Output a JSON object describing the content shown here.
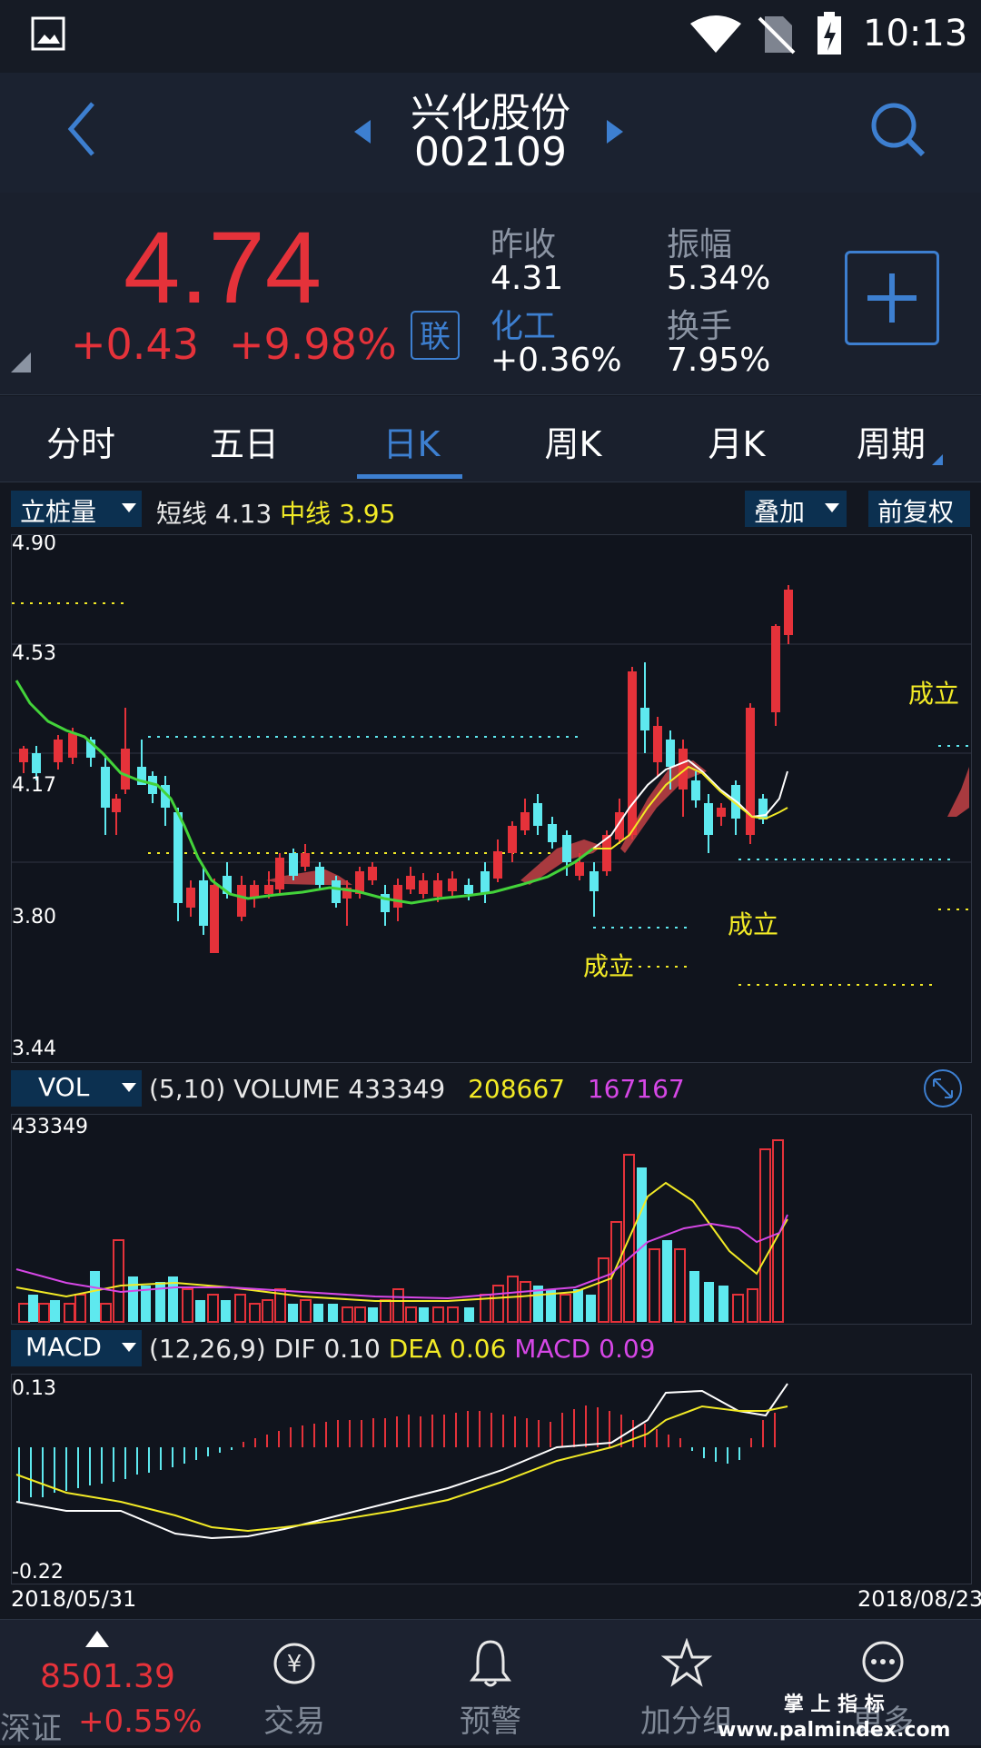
{
  "status": {
    "time": "10:13"
  },
  "header": {
    "name": "兴化股份",
    "code": "002109"
  },
  "quote": {
    "price": "4.74",
    "change": "+0.43",
    "change_pct": "+9.98%",
    "link_label": "联",
    "prev_close_label": "昨收",
    "prev_close": "4.31",
    "sector_label": "化工",
    "sector_change": "+0.36%",
    "amplitude_label": "振幅",
    "amplitude": "5.34%",
    "turnover_label": "换手",
    "turnover": "7.95%"
  },
  "tabs": [
    "分时",
    "五日",
    "日K",
    "周K",
    "月K",
    "周期"
  ],
  "main_indicator": {
    "selector": "立桩量",
    "short_label": "短线",
    "short_value": "4.13",
    "mid_label": "中线",
    "mid_value": "3.95",
    "overlay_label": "叠加",
    "adjust_label": "前复权"
  },
  "kline": {
    "y_ticks": [
      "4.90",
      "4.53",
      "4.17",
      "3.80",
      "3.44"
    ],
    "signals": [
      "成立",
      "成立",
      "成立"
    ]
  },
  "volume": {
    "selector": "VOL",
    "params": "(5,10)",
    "label": "VOLUME",
    "value": "433349",
    "ma5": "208667",
    "ma10": "167167",
    "max_tick": "433349"
  },
  "macd": {
    "selector": "MACD",
    "params": "(12,26,9)",
    "dif_label": "DIF",
    "dif": "0.10",
    "dea_label": "DEA",
    "dea": "0.06",
    "macd_label": "MACD",
    "macd": "0.09",
    "top_tick": "0.13",
    "bottom_tick": "-0.22"
  },
  "dates": {
    "start": "2018/05/31",
    "end": "2018/08/23"
  },
  "bottom_nav": {
    "index_value": "8501.39",
    "index_name": "深证",
    "index_change": "+0.55%",
    "items": [
      "交易",
      "预警",
      "加分组",
      "更多"
    ]
  },
  "watermark": "掌 上 指 标\nwww.palmindex.com",
  "colors": {
    "up": "#e5323a",
    "down": "#5ee9ef",
    "accent": "#3d7fd0",
    "short_line": "#ffffff",
    "mid_line": "#f2ea26",
    "ma10": "#d647e6"
  }
}
